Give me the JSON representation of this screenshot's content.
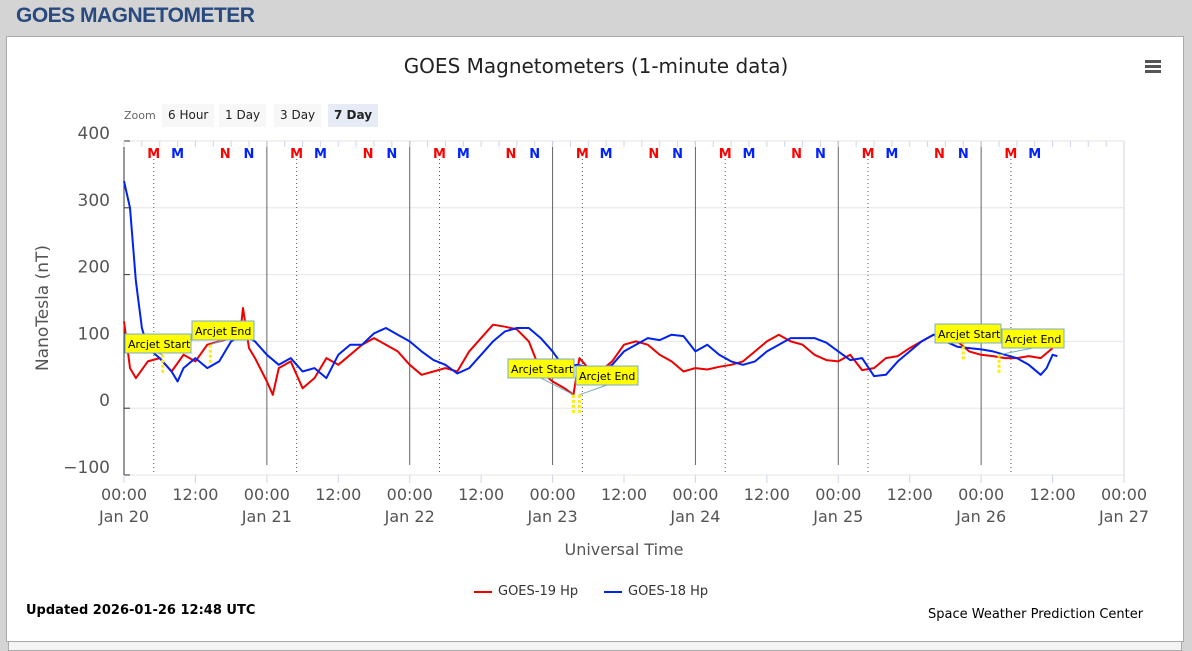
{
  "header": {
    "title": "GOES MAGNETOMETER"
  },
  "zoom": {
    "label": "Zoom",
    "buttons": [
      "6 Hour",
      "1 Day",
      "3 Day",
      "7 Day"
    ],
    "active": "7 Day"
  },
  "footer": {
    "updated": "Updated 2026-01-26 12:48 UTC",
    "credit": "Space Weather Prediction Center"
  },
  "chart_data": {
    "type": "line",
    "title": "GOES Magnetometers (1-minute data)",
    "xlabel": "Universal Time",
    "ylabel": "NanoTesla (nT)",
    "ylim": [
      -100,
      400
    ],
    "yticks": [
      "400",
      "300",
      "200",
      "100",
      "0",
      "−100"
    ],
    "xlim": [
      "01-20 00:00",
      "01-27 00:00"
    ],
    "xticks": [
      {
        "time": "00:00",
        "date": "Jan 20"
      },
      {
        "time": "12:00",
        "date": ""
      },
      {
        "time": "00:00",
        "date": "Jan 21"
      },
      {
        "time": "12:00",
        "date": ""
      },
      {
        "time": "00:00",
        "date": "Jan 22"
      },
      {
        "time": "12:00",
        "date": ""
      },
      {
        "time": "00:00",
        "date": "Jan 23"
      },
      {
        "time": "12:00",
        "date": ""
      },
      {
        "time": "00:00",
        "date": "Jan 24"
      },
      {
        "time": "12:00",
        "date": ""
      },
      {
        "time": "00:00",
        "date": "Jan 25"
      },
      {
        "time": "12:00",
        "date": ""
      },
      {
        "time": "00:00",
        "date": "Jan 26"
      },
      {
        "time": "12:00",
        "date": ""
      },
      {
        "time": "00:00",
        "date": "Jan 27"
      }
    ],
    "grid": true,
    "legend_placement": "bottom",
    "daily_markers": [
      {
        "letter": "M",
        "color": "#ff0000",
        "time": "05:00"
      },
      {
        "letter": "M",
        "color": "#0022ff",
        "time": "09:00"
      },
      {
        "letter": "N",
        "color": "#ff0000",
        "time": "17:00"
      },
      {
        "letter": "N",
        "color": "#0022ff",
        "time": "21:00"
      }
    ],
    "series": [
      {
        "name": "GOES-19 Hp",
        "color": "#ee0000",
        "points": [
          [
            "01-20 00:00",
            130
          ],
          [
            "01-20 01:00",
            60
          ],
          [
            "01-20 02:00",
            45
          ],
          [
            "01-20 04:00",
            70
          ],
          [
            "01-20 06:00",
            75
          ],
          [
            "01-20 08:00",
            55
          ],
          [
            "01-20 10:00",
            80
          ],
          [
            "01-20 12:00",
            70
          ],
          [
            "01-20 14:00",
            95
          ],
          [
            "01-20 16:00",
            100
          ],
          [
            "01-20 18:00",
            105
          ],
          [
            "01-20 19:30",
            110
          ],
          [
            "01-20 20:00",
            150
          ],
          [
            "01-20 21:00",
            90
          ],
          [
            "01-20 22:00",
            75
          ],
          [
            "01-21 00:00",
            40
          ],
          [
            "01-21 01:00",
            20
          ],
          [
            "01-21 02:00",
            60
          ],
          [
            "01-21 04:00",
            70
          ],
          [
            "01-21 06:00",
            30
          ],
          [
            "01-21 08:00",
            45
          ],
          [
            "01-21 10:00",
            75
          ],
          [
            "01-21 12:00",
            65
          ],
          [
            "01-21 14:00",
            80
          ],
          [
            "01-21 16:00",
            95
          ],
          [
            "01-21 18:00",
            105
          ],
          [
            "01-21 20:00",
            95
          ],
          [
            "01-21 22:00",
            85
          ],
          [
            "01-22 00:00",
            65
          ],
          [
            "01-22 02:00",
            50
          ],
          [
            "01-22 04:00",
            55
          ],
          [
            "01-22 06:00",
            60
          ],
          [
            "01-22 08:00",
            55
          ],
          [
            "01-22 10:00",
            85
          ],
          [
            "01-22 12:00",
            105
          ],
          [
            "01-22 14:00",
            125
          ],
          [
            "01-22 16:00",
            122
          ],
          [
            "01-22 18:00",
            118
          ],
          [
            "01-22 20:00",
            100
          ],
          [
            "01-22 22:00",
            55
          ],
          [
            "01-23 00:00",
            40
          ],
          [
            "01-23 02:00",
            30
          ],
          [
            "01-23 03:30",
            20
          ],
          [
            "01-23 04:30",
            75
          ],
          [
            "01-23 06:00",
            60
          ],
          [
            "01-23 08:00",
            55
          ],
          [
            "01-23 10:00",
            70
          ],
          [
            "01-23 12:00",
            95
          ],
          [
            "01-23 14:00",
            100
          ],
          [
            "01-23 16:00",
            95
          ],
          [
            "01-23 18:00",
            80
          ],
          [
            "01-23 20:00",
            70
          ],
          [
            "01-23 22:00",
            55
          ],
          [
            "01-24 00:00",
            60
          ],
          [
            "01-24 02:00",
            58
          ],
          [
            "01-24 04:00",
            62
          ],
          [
            "01-24 06:00",
            65
          ],
          [
            "01-24 08:00",
            70
          ],
          [
            "01-24 10:00",
            85
          ],
          [
            "01-24 12:00",
            100
          ],
          [
            "01-24 14:00",
            110
          ],
          [
            "01-24 16:00",
            100
          ],
          [
            "01-24 18:00",
            95
          ],
          [
            "01-24 20:00",
            80
          ],
          [
            "01-24 22:00",
            72
          ],
          [
            "01-25 00:00",
            70
          ],
          [
            "01-25 02:00",
            80
          ],
          [
            "01-25 04:00",
            57
          ],
          [
            "01-25 06:00",
            60
          ],
          [
            "01-25 08:00",
            75
          ],
          [
            "01-25 10:00",
            78
          ],
          [
            "01-25 12:00",
            90
          ],
          [
            "01-25 14:00",
            100
          ],
          [
            "01-25 16:00",
            110
          ],
          [
            "01-25 18:00",
            110
          ],
          [
            "01-25 20:00",
            100
          ],
          [
            "01-25 22:00",
            85
          ],
          [
            "01-26 00:00",
            80
          ],
          [
            "01-26 02:00",
            78
          ],
          [
            "01-26 04:00",
            75
          ],
          [
            "01-26 06:00",
            75
          ],
          [
            "01-26 08:00",
            78
          ],
          [
            "01-26 10:00",
            75
          ],
          [
            "01-26 12:00",
            90
          ]
        ]
      },
      {
        "name": "GOES-18 Hp",
        "color": "#0022ee",
        "points": [
          [
            "01-20 00:00",
            340
          ],
          [
            "01-20 01:00",
            300
          ],
          [
            "01-20 02:00",
            190
          ],
          [
            "01-20 03:00",
            120
          ],
          [
            "01-20 04:00",
            90
          ],
          [
            "01-20 06:00",
            75
          ],
          [
            "01-20 08:00",
            55
          ],
          [
            "01-20 09:00",
            40
          ],
          [
            "01-20 10:00",
            60
          ],
          [
            "01-20 12:00",
            75
          ],
          [
            "01-20 14:00",
            60
          ],
          [
            "01-20 16:00",
            70
          ],
          [
            "01-20 18:00",
            100
          ],
          [
            "01-20 20:00",
            110
          ],
          [
            "01-20 22:00",
            100
          ],
          [
            "01-21 00:00",
            80
          ],
          [
            "01-21 02:00",
            65
          ],
          [
            "01-21 04:00",
            75
          ],
          [
            "01-21 06:00",
            55
          ],
          [
            "01-21 08:00",
            60
          ],
          [
            "01-21 10:00",
            45
          ],
          [
            "01-21 12:00",
            80
          ],
          [
            "01-21 14:00",
            95
          ],
          [
            "01-21 16:00",
            95
          ],
          [
            "01-21 18:00",
            112
          ],
          [
            "01-21 20:00",
            120
          ],
          [
            "01-21 22:00",
            110
          ],
          [
            "01-22 00:00",
            100
          ],
          [
            "01-22 02:00",
            85
          ],
          [
            "01-22 04:00",
            72
          ],
          [
            "01-22 06:00",
            65
          ],
          [
            "01-22 08:00",
            52
          ],
          [
            "01-22 10:00",
            60
          ],
          [
            "01-22 12:00",
            80
          ],
          [
            "01-22 14:00",
            100
          ],
          [
            "01-22 16:00",
            115
          ],
          [
            "01-22 18:00",
            120
          ],
          [
            "01-22 20:00",
            120
          ],
          [
            "01-22 22:00",
            105
          ],
          [
            "01-23 00:00",
            85
          ],
          [
            "01-23 02:00",
            60
          ],
          [
            "01-23 04:00",
            65
          ],
          [
            "01-23 06:00",
            62
          ],
          [
            "01-23 08:00",
            55
          ],
          [
            "01-23 10:00",
            65
          ],
          [
            "01-23 12:00",
            85
          ],
          [
            "01-23 14:00",
            95
          ],
          [
            "01-23 16:00",
            105
          ],
          [
            "01-23 18:00",
            102
          ],
          [
            "01-23 20:00",
            110
          ],
          [
            "01-23 22:00",
            108
          ],
          [
            "01-24 00:00",
            85
          ],
          [
            "01-24 02:00",
            95
          ],
          [
            "01-24 04:00",
            80
          ],
          [
            "01-24 06:00",
            70
          ],
          [
            "01-24 08:00",
            65
          ],
          [
            "01-24 10:00",
            70
          ],
          [
            "01-24 12:00",
            85
          ],
          [
            "01-24 14:00",
            95
          ],
          [
            "01-24 16:00",
            105
          ],
          [
            "01-24 18:00",
            105
          ],
          [
            "01-24 20:00",
            105
          ],
          [
            "01-24 22:00",
            98
          ],
          [
            "01-25 00:00",
            85
          ],
          [
            "01-25 02:00",
            72
          ],
          [
            "01-25 04:00",
            75
          ],
          [
            "01-25 06:00",
            48
          ],
          [
            "01-25 08:00",
            50
          ],
          [
            "01-25 10:00",
            70
          ],
          [
            "01-25 12:00",
            85
          ],
          [
            "01-25 14:00",
            100
          ],
          [
            "01-25 16:00",
            110
          ],
          [
            "01-25 18:00",
            100
          ],
          [
            "01-25 20:00",
            92
          ],
          [
            "01-25 22:00",
            90
          ],
          [
            "01-26 00:00",
            88
          ],
          [
            "01-26 02:00",
            85
          ],
          [
            "01-26 04:00",
            80
          ],
          [
            "01-26 06:00",
            75
          ],
          [
            "01-26 08:00",
            65
          ],
          [
            "01-26 10:00",
            50
          ],
          [
            "01-26 11:00",
            60
          ],
          [
            "01-26 12:00",
            80
          ],
          [
            "01-26 12:48",
            78
          ]
        ]
      }
    ],
    "annotations": [
      {
        "label": "Arcjet Start",
        "time": "01-20 06:30",
        "value": 80
      },
      {
        "label": "Arcjet End",
        "time": "01-20 14:30",
        "value": 95
      },
      {
        "label": "Arcjet Start",
        "time": "01-23 03:30",
        "value": 20
      },
      {
        "label": "Arcjet End",
        "time": "01-23 04:30",
        "value": 20
      },
      {
        "label": "Arcjet Start",
        "time": "01-25 21:00",
        "value": 100
      },
      {
        "label": "Arcjet End",
        "time": "01-26 03:00",
        "value": 80
      }
    ]
  }
}
